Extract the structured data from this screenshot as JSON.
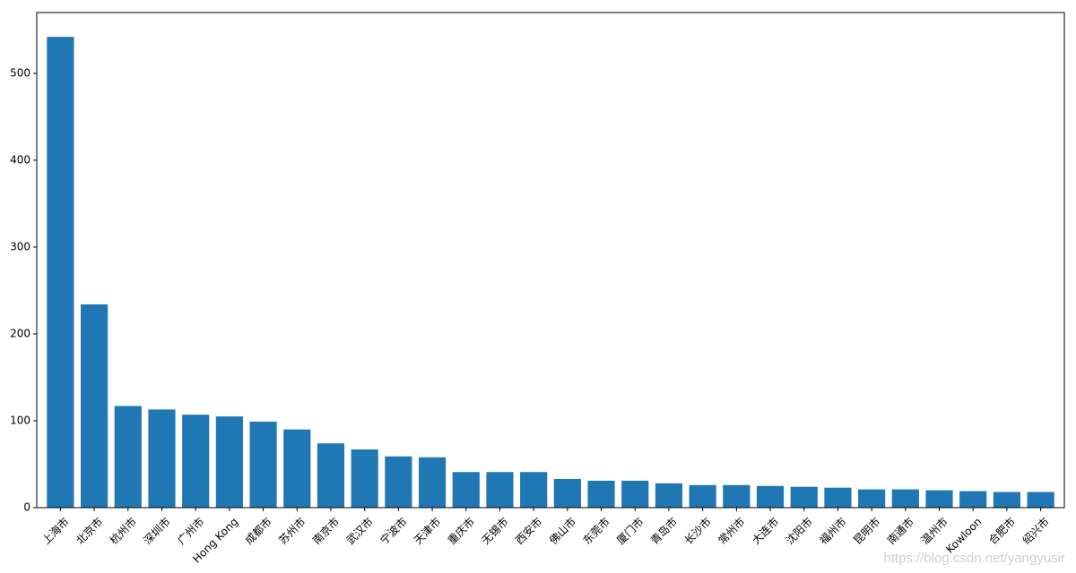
{
  "chart_data": {
    "type": "bar",
    "categories": [
      "上海市",
      "北京市",
      "杭州市",
      "深圳市",
      "广州市",
      "Hong Kong",
      "成都市",
      "苏州市",
      "南京市",
      "武汉市",
      "宁波市",
      "天津市",
      "重庆市",
      "无锡市",
      "西安市",
      "佛山市",
      "东莞市",
      "厦门市",
      "青岛市",
      "长沙市",
      "常州市",
      "大连市",
      "沈阳市",
      "福州市",
      "昆明市",
      "南通市",
      "温州市",
      "Kowloon",
      "合肥市",
      "绍兴市"
    ],
    "values": [
      542,
      234,
      117,
      113,
      107,
      105,
      99,
      90,
      74,
      67,
      59,
      58,
      41,
      41,
      41,
      33,
      31,
      31,
      28,
      26,
      26,
      25,
      24,
      23,
      21,
      21,
      20,
      19,
      18,
      18
    ],
    "ylim": [
      0,
      570
    ],
    "yticks": [
      0,
      100,
      200,
      300,
      400,
      500
    ],
    "bar_color": "#1f77b4",
    "title": "",
    "xlabel": "",
    "ylabel": ""
  },
  "watermark": "https://blog.csdn.net/yangyusir"
}
